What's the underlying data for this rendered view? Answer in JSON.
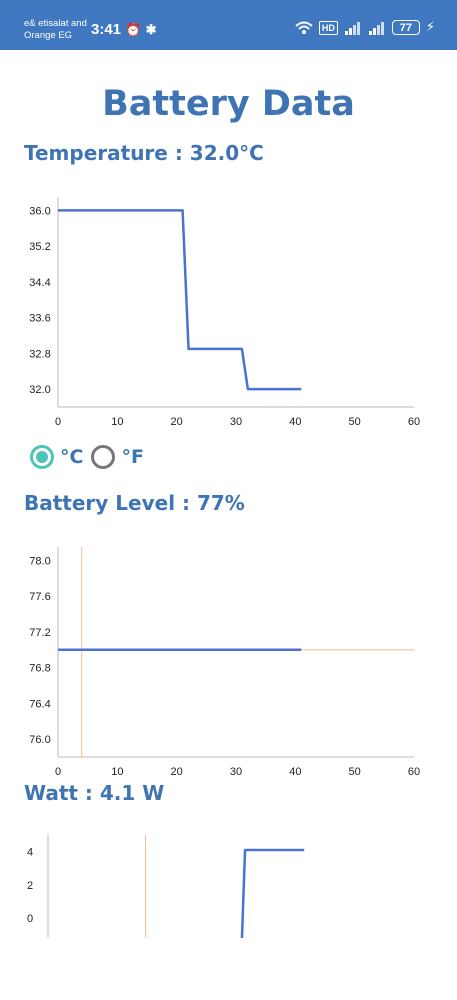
{
  "status_bar": {
    "carrier_line1": "e& etisalat and",
    "carrier_line2": "Orange EG",
    "time": "3:41",
    "hd_label": "HD",
    "battery_percent": "77",
    "icons": [
      "alarm-icon",
      "bluetooth-icon",
      "wifi-icon",
      "signal-icon",
      "signal-icon",
      "charging-icon"
    ]
  },
  "page": {
    "title": "Battery Data"
  },
  "temperature": {
    "label": "Temperature : 32.0°C",
    "unit_options": [
      {
        "label": "°C",
        "selected": true
      },
      {
        "label": "°F",
        "selected": false
      }
    ]
  },
  "battery_level": {
    "label": "Battery Level : 77%"
  },
  "watt": {
    "label": "Watt : 4.1 W"
  },
  "chart_data": [
    {
      "type": "line",
      "x_ticks": [
        "0",
        "10",
        "20",
        "30",
        "40",
        "50",
        "60"
      ],
      "y_ticks": [
        "32.0",
        "32.8",
        "33.6",
        "34.4",
        "35.2",
        "36.0"
      ],
      "xlim": [
        0,
        60
      ],
      "ylim": [
        31.6,
        36.3
      ],
      "series": [
        {
          "x": [
            0,
            21,
            22,
            31,
            32,
            41
          ],
          "y": [
            36.0,
            36.0,
            32.9,
            32.9,
            32.0,
            32.0
          ],
          "color": "#4a72d4"
        }
      ]
    },
    {
      "type": "line",
      "x_ticks": [
        "0",
        "10",
        "20",
        "30",
        "40",
        "50",
        "60"
      ],
      "y_ticks": [
        "76.0",
        "76.4",
        "76.8",
        "77.2",
        "77.6",
        "78.0"
      ],
      "xlim": [
        0,
        60
      ],
      "ylim": [
        75.8,
        78.15
      ],
      "series": [
        {
          "x": [
            0,
            41
          ],
          "y": [
            77.0,
            77.0
          ],
          "color": "#4a72d4"
        }
      ],
      "reference_lines": {
        "vertical_x": 4,
        "horizontal_y": 77.0,
        "color": "#f0c090"
      }
    },
    {
      "type": "line",
      "x_ticks": [],
      "y_ticks": [
        "0",
        "2",
        "4"
      ],
      "xlim": [
        0,
        60
      ],
      "ylim": [
        -1.2,
        5
      ],
      "series": [
        {
          "x": [
            31.8,
            32.3,
            42
          ],
          "y": [
            -1.2,
            4.1,
            4.1
          ],
          "color": "#4a72d4"
        }
      ],
      "reference_lines": {
        "vertical_x": 16,
        "color": "#f0c090"
      }
    }
  ]
}
